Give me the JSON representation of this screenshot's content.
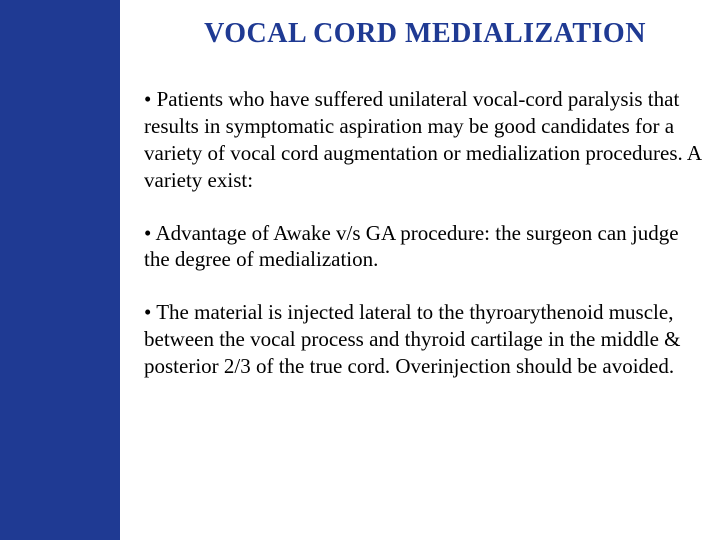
{
  "colors": {
    "sidebar_bg": "#1f3a93",
    "title_color": "#1f3a93",
    "body_text": "#000000",
    "page_bg": "#ffffff"
  },
  "title": "VOCAL CORD MEDIALIZATION",
  "paragraphs": [
    "• Patients who have suffered unilateral vocal-cord paralysis that results in symptomatic aspiration may be good candidates for a variety of vocal cord augmentation or medialization procedures. A variety exist:",
    "• Advantage of  Awake v/s GA procedure: the surgeon can judge the degree of medialization.",
    "• The material is injected lateral to the thyroarythenoid muscle, between the vocal process and thyroid cartilage in the middle & posterior 2/3 of the true cord. Overinjection should be avoided."
  ]
}
